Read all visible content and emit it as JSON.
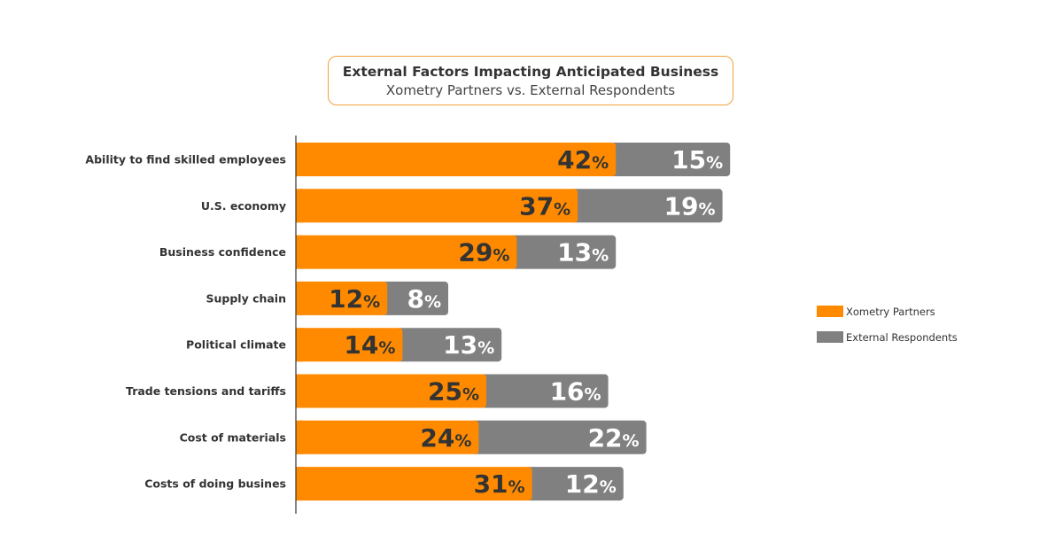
{
  "chart_data": {
    "type": "bar",
    "orientation": "horizontal",
    "stacked": true,
    "title": "External Factors Impacting Anticipated Business",
    "subtitle": "Xometry Partners vs. External Respondents",
    "categories": [
      "Ability to find skilled employees",
      "U.S. economy",
      "Business confidence",
      "Supply chain",
      "Political climate",
      "Trade tensions and tariffs",
      "Cost of materials",
      "Costs of doing busines"
    ],
    "series": [
      {
        "name": "Xometry Partners",
        "color": "#ff8a00",
        "label_color": "#333333",
        "values": [
          42,
          37,
          29,
          12,
          14,
          25,
          24,
          31
        ]
      },
      {
        "name": "External Respondents",
        "color": "#808080",
        "label_color": "#ffffff",
        "values": [
          15,
          19,
          13,
          8,
          13,
          16,
          22,
          12
        ]
      }
    ],
    "value_suffix": "%",
    "legend_position": "right",
    "grid": false
  }
}
